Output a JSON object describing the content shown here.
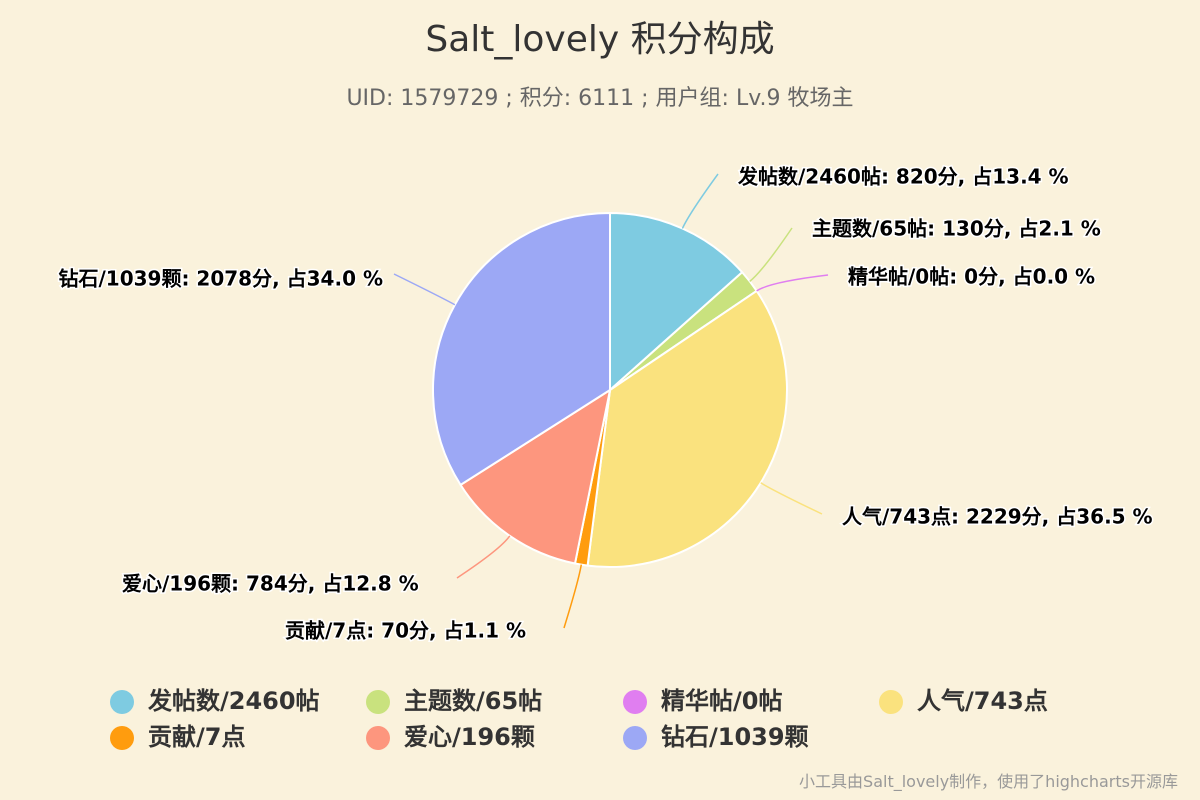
{
  "chart_data": {
    "type": "pie",
    "title": "Salt_lovely 积分构成",
    "subtitle": "UID: 1579729 ; 积分: 6111 ; 用户组: Lv.9 牧场主",
    "series": [
      {
        "name": "发帖数/2460帖",
        "points": 820,
        "percent": 13.4,
        "color": "#7ECBE1"
      },
      {
        "name": "主题数/65帖",
        "points": 130,
        "percent": 2.1,
        "color": "#C9E27E"
      },
      {
        "name": "精华帖/0帖",
        "points": 0,
        "percent": 0.0,
        "color": "#E07EF0"
      },
      {
        "name": "人气/743点",
        "points": 2229,
        "percent": 36.5,
        "color": "#FAE27E"
      },
      {
        "name": "贡献/7点",
        "points": 70,
        "percent": 1.1,
        "color": "#FF9C0E"
      },
      {
        "name": "爱心/196颗",
        "points": 784,
        "percent": 12.8,
        "color": "#FD967E"
      },
      {
        "name": "钻石/1039颗",
        "points": 2078,
        "percent": 34.0,
        "color": "#9CA8F5"
      }
    ],
    "data_labels": [
      "发帖数/2460帖: 820分, 占13.4 %",
      "主题数/65帖: 130分, 占2.1 %",
      "精华帖/0帖: 0分, 占0.0 %",
      "人气/743点: 2229分, 占36.5 %",
      "贡献/7点: 70分, 占1.1 %",
      "爱心/196颗: 784分, 占12.8 %",
      "钻石/1039颗: 2078分, 占34.0 %"
    ],
    "legend_position": "bottom"
  },
  "credits": "小工具由Salt_lovely制作，使用了highcharts开源库"
}
